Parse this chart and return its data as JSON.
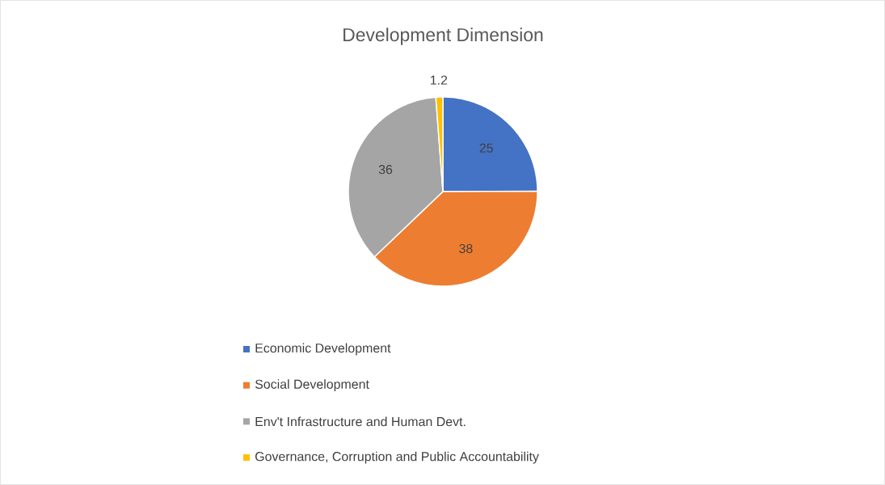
{
  "chart_data": {
    "type": "pie",
    "title": "Development Dimension",
    "categories": [
      "Economic Development",
      "Social Development",
      "Env't Infrastructure and Human Devt.",
      "Governance, Corruption and Public Accountability"
    ],
    "values": [
      25,
      38,
      36,
      1.2
    ],
    "colors": [
      "#4472c4",
      "#ed7d31",
      "#a5a5a5",
      "#ffc000"
    ],
    "data_labels": true,
    "legend": "bottom"
  }
}
